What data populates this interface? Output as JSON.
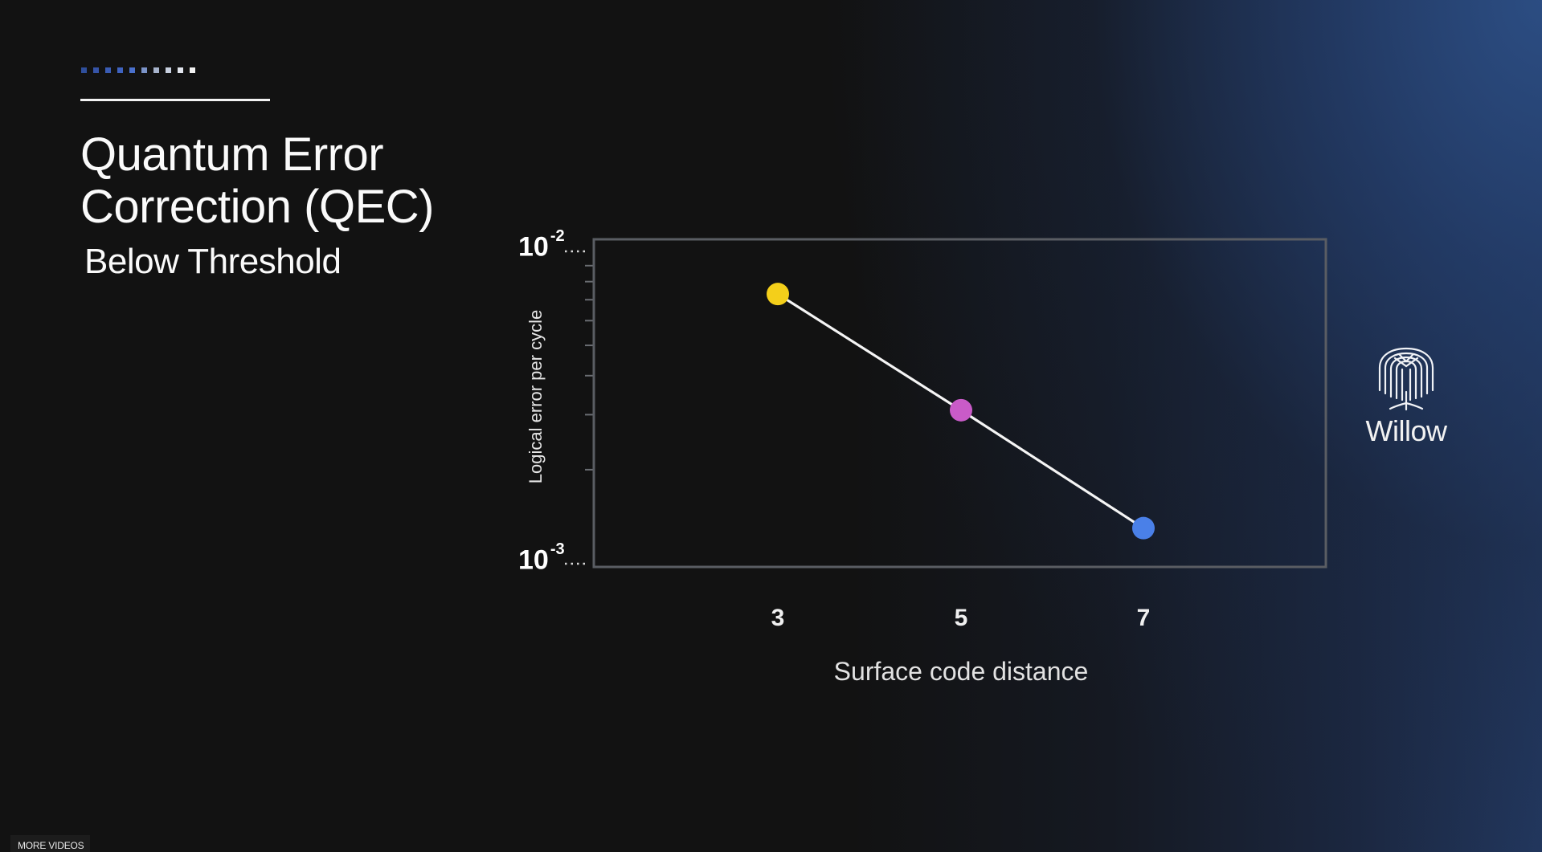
{
  "slide": {
    "progress_squares": [
      "#2f4f9c",
      "#3654a8",
      "#3a5cb4",
      "#3f63c0",
      "#4a70cc",
      "#7b93c8",
      "#a7b3cc",
      "#c8d0e0",
      "#e2e6ee",
      "#f2f2f2"
    ],
    "title_line1": "Quantum Error",
    "title_line2": "Correction (QEC)",
    "subtitle": "Below Threshold"
  },
  "chart_data": {
    "type": "line",
    "title": "Quantum Error Correction (QEC) — Below Threshold",
    "xlabel": "Surface code distance",
    "ylabel": "Logical error per cycle",
    "x": [
      3,
      5,
      7
    ],
    "categories": [
      "3",
      "5",
      "7"
    ],
    "series": [
      {
        "name": "Willow",
        "values": [
          0.0073,
          0.0031,
          0.0013
        ],
        "point_colors": [
          "#f4cf1a",
          "#c95bc8",
          "#4a80e8"
        ],
        "line_color": "#f5f5f5"
      }
    ],
    "yscale": "log",
    "ylim": [
      0.001,
      0.01
    ],
    "y_ticks": [
      {
        "base": "10",
        "exp": "-2",
        "value": 0.01
      },
      {
        "base": "10",
        "exp": "-3",
        "value": 0.001
      }
    ],
    "grid": false,
    "legend": null
  },
  "brand": {
    "name": "Willow",
    "icon": "willow-tree-icon"
  },
  "player": {
    "more_videos_label": "MORE VIDEOS"
  },
  "colors": {
    "background": "#121212",
    "accent_blue": "#2a4a7a",
    "axis_frame": "#5a5d63"
  }
}
